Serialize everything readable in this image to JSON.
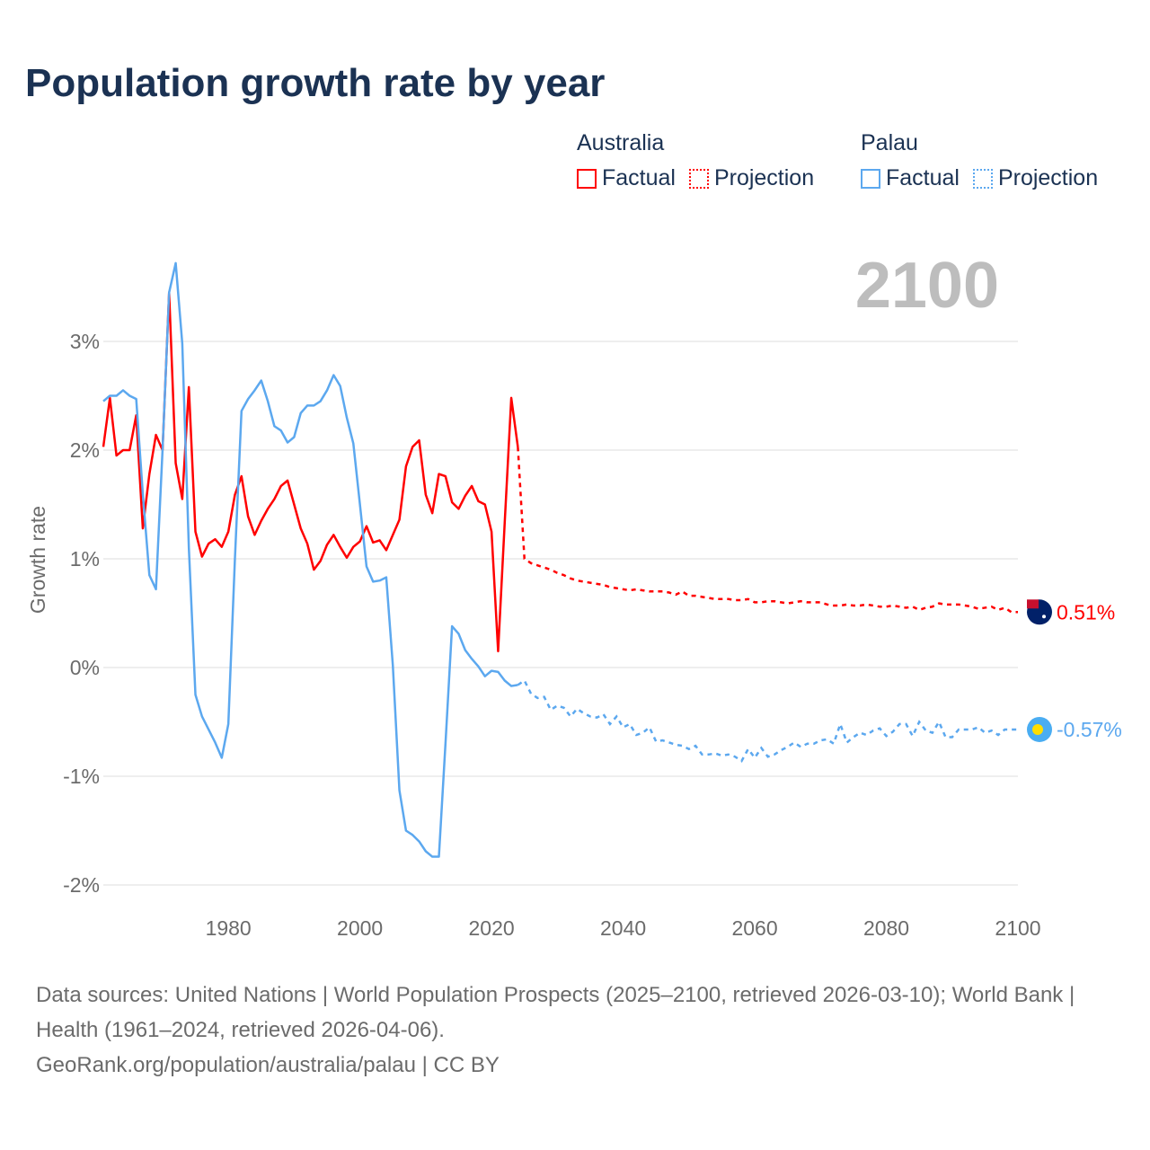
{
  "title": "Population growth rate by year",
  "legend": [
    {
      "group": "Australia",
      "color": "#ff0000",
      "factual": "Factual",
      "projection": "Projection"
    },
    {
      "group": "Palau",
      "color": "#5ca8ef",
      "factual": "Factual",
      "projection": "Projection"
    }
  ],
  "year_display": "2100",
  "footer": {
    "sources": "Data sources: United Nations | World Population Prospects (2025–2100, retrieved 2026-03-10); World Bank | Health (1961–2024, retrieved 2026-04-06).",
    "credit": "GeoRank.org/population/australia/palau | CC BY"
  },
  "chart_data": {
    "type": "line",
    "title": "Population growth rate by year",
    "xlabel": "",
    "ylabel": "Growth rate",
    "xlim": [
      1961,
      2100
    ],
    "ylim": [
      -2.3,
      3.9
    ],
    "xticks": [
      1980,
      2000,
      2020,
      2040,
      2060,
      2080,
      2100
    ],
    "xtick_labels": [
      "1980",
      "2000",
      "2020",
      "2040",
      "2060",
      "2080",
      "2100"
    ],
    "yticks": [
      3,
      2,
      1,
      0,
      -1,
      -2
    ],
    "ytick_labels": [
      "3%",
      "2%",
      "1%",
      "0%",
      "-1%",
      "-2%"
    ],
    "grid": true,
    "legend_placement": "top-right",
    "series": [
      {
        "name": "Australia",
        "color": "#ff0000",
        "end_label": "0.51%",
        "factual_start": 1961,
        "factual": [
          2.03,
          2.48,
          1.95,
          2.0,
          2.0,
          2.32,
          1.28,
          1.78,
          2.14,
          2.0,
          3.45,
          1.88,
          1.55,
          2.58,
          1.25,
          1.02,
          1.14,
          1.18,
          1.11,
          1.25,
          1.59,
          1.76,
          1.39,
          1.22,
          1.35,
          1.46,
          1.55,
          1.67,
          1.72,
          1.5,
          1.28,
          1.14,
          0.9,
          0.98,
          1.13,
          1.22,
          1.11,
          1.01,
          1.11,
          1.16,
          1.3,
          1.15,
          1.17,
          1.08,
          1.22,
          1.36,
          1.85,
          2.03,
          2.09,
          1.59,
          1.42,
          1.78,
          1.76,
          1.52,
          1.46,
          1.58,
          1.67,
          1.53,
          1.5,
          1.25,
          0.15,
          1.33,
          2.48,
          2.03
        ],
        "projection_start": 2025,
        "projection": [
          1.0,
          0.96,
          0.94,
          0.92,
          0.9,
          0.87,
          0.85,
          0.82,
          0.8,
          0.79,
          0.78,
          0.77,
          0.76,
          0.74,
          0.73,
          0.72,
          0.71,
          0.72,
          0.71,
          0.7,
          0.7,
          0.7,
          0.69,
          0.67,
          0.7,
          0.66,
          0.66,
          0.65,
          0.64,
          0.63,
          0.63,
          0.63,
          0.62,
          0.62,
          0.63,
          0.6,
          0.6,
          0.61,
          0.61,
          0.6,
          0.59,
          0.6,
          0.61,
          0.6,
          0.6,
          0.6,
          0.58,
          0.57,
          0.57,
          0.58,
          0.57,
          0.57,
          0.58,
          0.57,
          0.56,
          0.56,
          0.57,
          0.56,
          0.55,
          0.56,
          0.53,
          0.55,
          0.56,
          0.59,
          0.58,
          0.58,
          0.58,
          0.57,
          0.56,
          0.54,
          0.55,
          0.56,
          0.53,
          0.55,
          0.51,
          0.51
        ]
      },
      {
        "name": "Palau",
        "color": "#5ca8ef",
        "end_label": "-0.57%",
        "factual_start": 1961,
        "factual": [
          2.45,
          2.5,
          2.5,
          2.55,
          2.5,
          2.47,
          1.6,
          0.85,
          0.72,
          2.0,
          3.45,
          3.72,
          2.98,
          1.1,
          -0.25,
          -0.45,
          -0.57,
          -0.69,
          -0.83,
          -0.52,
          1.0,
          2.36,
          2.47,
          2.55,
          2.64,
          2.45,
          2.22,
          2.18,
          2.07,
          2.12,
          2.34,
          2.41,
          2.41,
          2.45,
          2.55,
          2.69,
          2.59,
          2.3,
          2.06,
          1.5,
          0.93,
          0.79,
          0.8,
          0.83,
          0.02,
          -1.13,
          -1.5,
          -1.54,
          -1.6,
          -1.69,
          -1.74,
          -1.74,
          -0.7,
          0.38,
          0.31,
          0.16,
          0.08,
          0.01,
          -0.08,
          -0.03,
          -0.04,
          -0.12,
          -0.17,
          -0.16
        ],
        "projection_start": 2025,
        "projection": [
          -0.12,
          -0.24,
          -0.28,
          -0.27,
          -0.39,
          -0.35,
          -0.37,
          -0.45,
          -0.38,
          -0.42,
          -0.45,
          -0.46,
          -0.43,
          -0.52,
          -0.45,
          -0.55,
          -0.52,
          -0.62,
          -0.6,
          -0.55,
          -0.68,
          -0.67,
          -0.69,
          -0.71,
          -0.72,
          -0.75,
          -0.72,
          -0.8,
          -0.8,
          -0.79,
          -0.81,
          -0.8,
          -0.82,
          -0.86,
          -0.75,
          -0.83,
          -0.74,
          -0.82,
          -0.8,
          -0.76,
          -0.73,
          -0.69,
          -0.73,
          -0.7,
          -0.7,
          -0.67,
          -0.66,
          -0.7,
          -0.52,
          -0.69,
          -0.64,
          -0.6,
          -0.62,
          -0.58,
          -0.56,
          -0.63,
          -0.59,
          -0.52,
          -0.52,
          -0.63,
          -0.5,
          -0.58,
          -0.6,
          -0.5,
          -0.64,
          -0.64,
          -0.57,
          -0.57,
          -0.57,
          -0.55,
          -0.6,
          -0.58,
          -0.62,
          -0.57,
          -0.57,
          -0.57
        ]
      }
    ]
  }
}
